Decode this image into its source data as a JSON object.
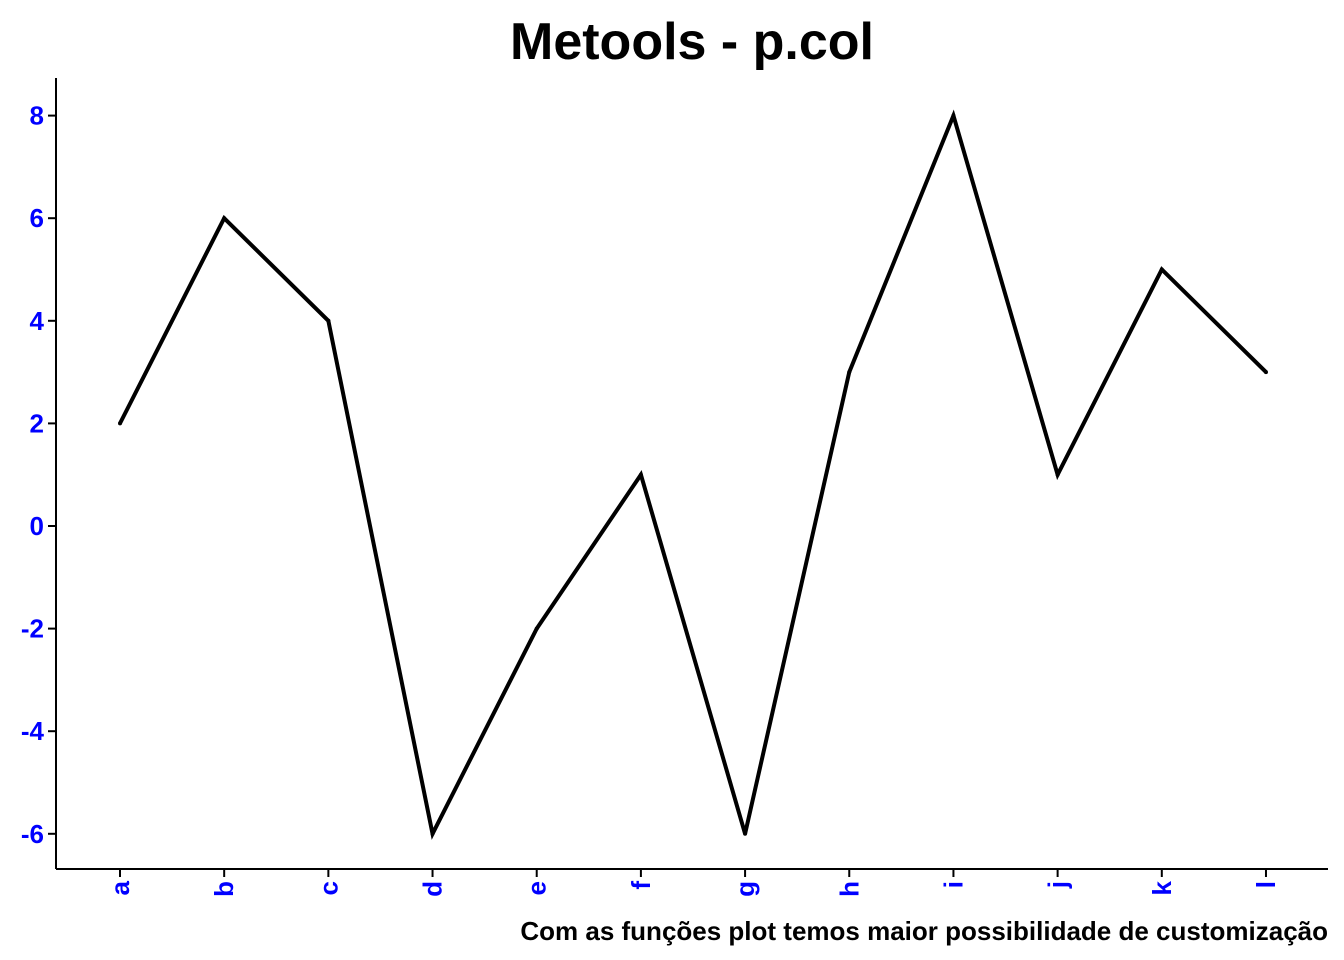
{
  "chart_data": {
    "type": "line",
    "title": "Metools - p.col",
    "xlabel": "Com as funções plot temos maior possibilidade de customização",
    "ylabel": "",
    "categories": [
      "a",
      "b",
      "c",
      "d",
      "e",
      "f",
      "g",
      "h",
      "i",
      "j",
      "k",
      "l"
    ],
    "values": [
      2,
      6,
      4,
      -6,
      -2,
      1,
      -6,
      3,
      8,
      1,
      5,
      3
    ],
    "ylim": [
      -6.7,
      8.7
    ],
    "yticks": [
      -6,
      -4,
      -2,
      0,
      2,
      4,
      6,
      8
    ],
    "grid": false,
    "line_color": "#000000",
    "tick_label_color": "#0000ff"
  }
}
